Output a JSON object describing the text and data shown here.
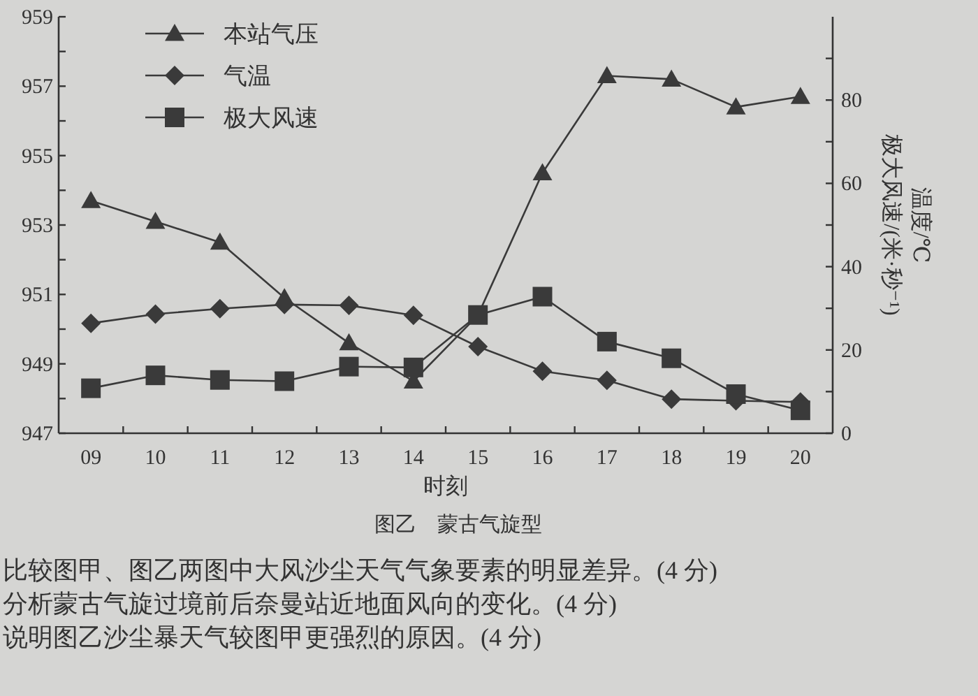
{
  "chart_data": {
    "type": "line",
    "title": "图乙　蒙古气旋型",
    "xlabel": "时刻",
    "y2label": "温度/℃\n极大风速/(米·秒⁻¹)",
    "categories": [
      "09",
      "10",
      "11",
      "12",
      "13",
      "14",
      "15",
      "16",
      "17",
      "18",
      "19",
      "20"
    ],
    "series": [
      {
        "name": "本站气压",
        "color": "#3a3a3a",
        "marker": "triangle",
        "values": [
          953.7,
          953.1,
          952.5,
          950.9,
          949.6,
          948.5,
          950.4,
          954.5,
          957.3,
          957.2,
          956.4,
          956.7
        ]
      },
      {
        "name": "气温",
        "color": "#3a3a3a",
        "marker": "diamond",
        "axis": "y2",
        "values": [
          26.4,
          28.6,
          29.9,
          30.9,
          30.7,
          28.3,
          20.8,
          14.9,
          12.7,
          8.2,
          7.8,
          7.5
        ]
      },
      {
        "name": "极大风速",
        "color": "#3a3a3a",
        "marker": "square",
        "axis": "y2",
        "values": [
          10.8,
          13.9,
          12.8,
          12.5,
          16.0,
          15.8,
          28.4,
          32.8,
          22.0,
          18.0,
          9.4,
          5.5
        ]
      }
    ],
    "ylim": [
      947,
      959
    ],
    "yticks": [
      947,
      {
        "value": 948,
        "label": null
      },
      949,
      {
        "value": 950,
        "label": null
      },
      951,
      {
        "value": 952,
        "label": null
      },
      953,
      {
        "value": 954,
        "label": null
      },
      955,
      {
        "value": 956,
        "label": null
      },
      957,
      {
        "value": 958,
        "label": null
      },
      959
    ],
    "y2lim": [
      0,
      100
    ],
    "y2ticks": [
      0,
      {
        "value": 10,
        "label": null
      },
      20,
      {
        "value": 30,
        "label": null
      },
      40,
      {
        "value": 50,
        "label": null
      },
      60,
      {
        "value": 70,
        "label": null
      },
      80,
      {
        "value": 90,
        "label": null
      }
    ],
    "legend": "top left",
    "annotations": [
      "比较图甲、图乙两图中大风沙尘天气气象要素的明显差异。(4 分)",
      "分析蒙古气旋过境前后奈曼站近地面风向的变化。(4 分)",
      "说明图乙沙尘暴天气较图甲更强烈的原因。(4 分)"
    ]
  }
}
